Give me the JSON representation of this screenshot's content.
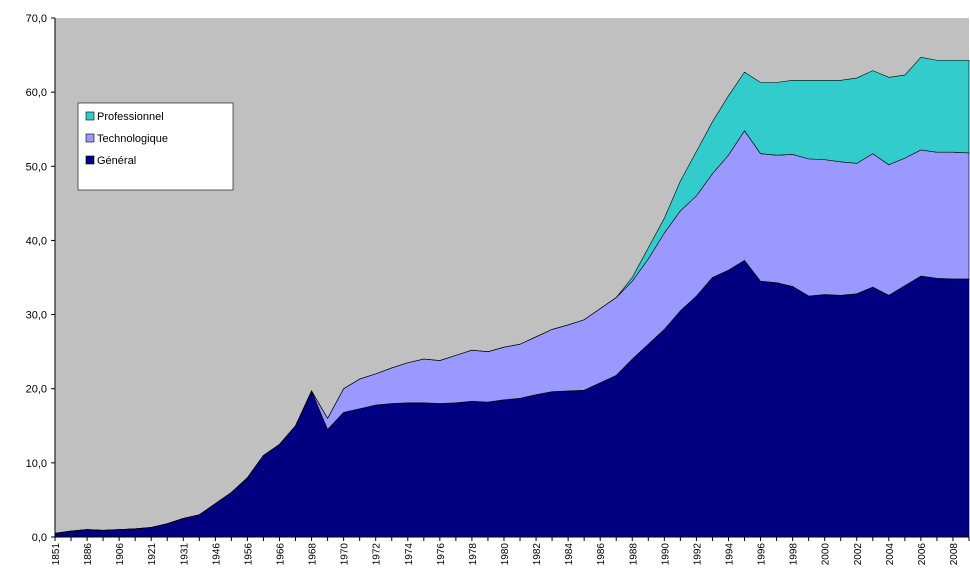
{
  "chart_data": {
    "type": "stacked-area",
    "categories": [
      "1851",
      null,
      "1886",
      null,
      "1906",
      null,
      "1921",
      null,
      "1931",
      null,
      "1946",
      null,
      "1956",
      null,
      "1966",
      null,
      "1968",
      null,
      "1970",
      null,
      "1972",
      null,
      "1974",
      null,
      "1976",
      null,
      "1978",
      null,
      "1980",
      null,
      "1982",
      null,
      "1984",
      null,
      "1986",
      null,
      "1988",
      null,
      "1990",
      null,
      "1992",
      null,
      "1994",
      null,
      "1996",
      null,
      "1998",
      null,
      "2000",
      null,
      "2002",
      null,
      "2004",
      null,
      "2006",
      null,
      "2008",
      null
    ],
    "series": [
      {
        "name": "Général",
        "color": "#000080",
        "values": [
          0.5,
          0.8,
          1.0,
          0.9,
          1.0,
          1.1,
          1.3,
          1.8,
          2.5,
          3.0,
          4.5,
          6.0,
          8.0,
          11.0,
          12.5,
          15.0,
          19.7,
          14.5,
          16.8,
          17.3,
          17.8,
          18.0,
          18.1,
          18.1,
          18.0,
          18.1,
          18.3,
          18.2,
          18.5,
          18.7,
          19.2,
          19.6,
          19.7,
          19.8,
          20.8,
          21.8,
          24.0,
          26.0,
          28.0,
          30.5,
          32.5,
          35.0,
          36.0,
          37.3,
          34.5,
          34.3,
          33.8,
          32.5,
          32.7,
          32.6,
          32.8,
          33.7,
          32.6,
          33.9,
          35.2,
          34.9,
          34.8,
          34.8
        ]
      },
      {
        "name": "Technologique",
        "color": "#9999ff",
        "values": [
          0,
          0,
          0,
          0,
          0,
          0,
          0,
          0,
          0,
          0,
          0,
          0,
          0,
          0,
          0,
          0,
          0,
          1.5,
          3.2,
          4.0,
          4.2,
          4.8,
          5.4,
          5.9,
          5.8,
          6.4,
          6.9,
          6.8,
          7.1,
          7.3,
          7.8,
          8.4,
          8.9,
          9.5,
          10.0,
          10.5,
          10.5,
          11.5,
          13.0,
          13.5,
          13.5,
          14.0,
          15.5,
          17.5,
          17.2,
          17.2,
          17.8,
          18.5,
          18.2,
          18.0,
          17.6,
          18.0,
          17.6,
          17.2,
          17.0,
          17.0,
          17.1,
          17.0
        ]
      },
      {
        "name": "Professionnel",
        "color": "#33cccc",
        "values": [
          0,
          0,
          0,
          0,
          0,
          0,
          0,
          0,
          0,
          0,
          0,
          0,
          0,
          0,
          0,
          0,
          0,
          0,
          0,
          0,
          0,
          0,
          0,
          0,
          0,
          0,
          0,
          0,
          0,
          0,
          0,
          0,
          0,
          0,
          0,
          0,
          0.5,
          1.5,
          2.0,
          4.0,
          6.0,
          7.0,
          8.0,
          7.9,
          9.6,
          9.8,
          10.0,
          10.6,
          10.7,
          11.0,
          11.5,
          11.2,
          11.8,
          11.2,
          12.5,
          12.4,
          12.4,
          12.5
        ]
      }
    ],
    "ylim": [
      0,
      70
    ],
    "yticks": [
      {
        "value": 0,
        "label": "0,0"
      },
      {
        "value": 10,
        "label": "10,0"
      },
      {
        "value": 20,
        "label": "20,0"
      },
      {
        "value": 30,
        "label": "30,0"
      },
      {
        "value": 40,
        "label": "40,0"
      },
      {
        "value": 50,
        "label": "50,0"
      },
      {
        "value": 60,
        "label": "60,0"
      },
      {
        "value": 70,
        "label": "70,0"
      }
    ],
    "plot_background": "#c0c0c0",
    "legend": "top-left"
  }
}
